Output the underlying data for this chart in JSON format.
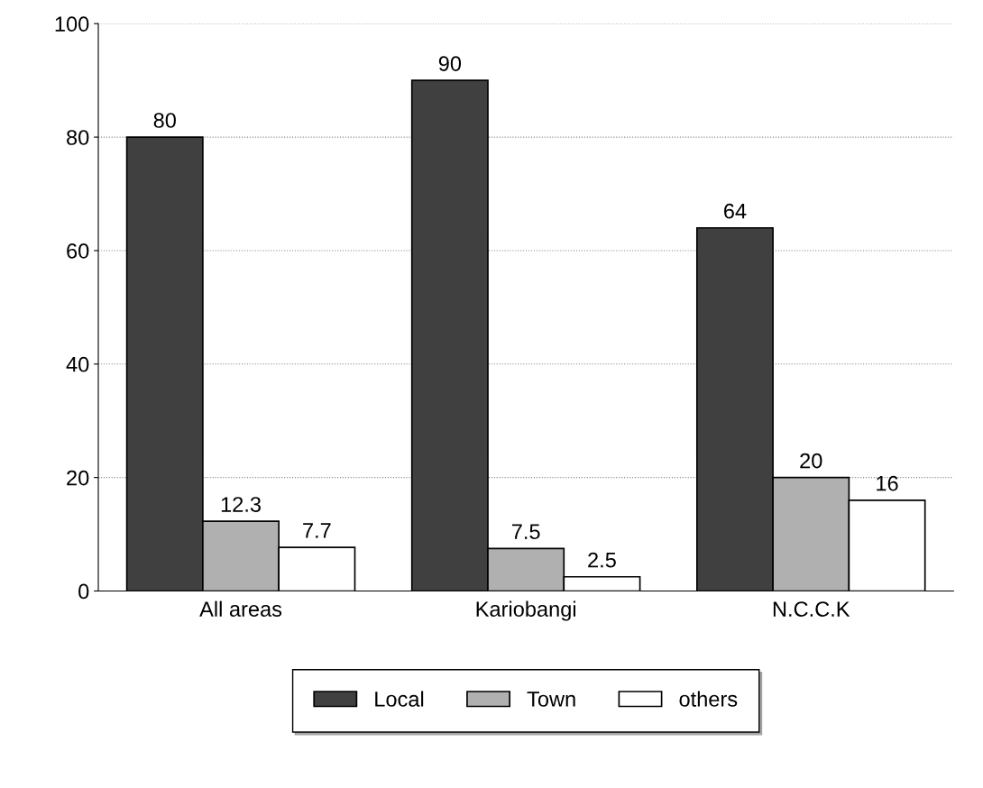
{
  "chart_data": {
    "type": "bar",
    "categories": [
      "All areas",
      "Kariobangi",
      "N.C.C.K"
    ],
    "series": [
      {
        "name": "Local",
        "color": "#404040",
        "values": [
          80,
          90,
          64
        ]
      },
      {
        "name": "Town",
        "color": "#b0b0b0",
        "values": [
          12.3,
          7.5,
          20
        ]
      },
      {
        "name": "others",
        "color": "#ffffff",
        "values": [
          7.7,
          2.5,
          16
        ]
      }
    ],
    "ylim": [
      0,
      100
    ],
    "yticks": [
      0,
      20,
      40,
      60,
      80,
      100
    ],
    "grid": "y",
    "legend": "bottom",
    "data_labels": true
  }
}
